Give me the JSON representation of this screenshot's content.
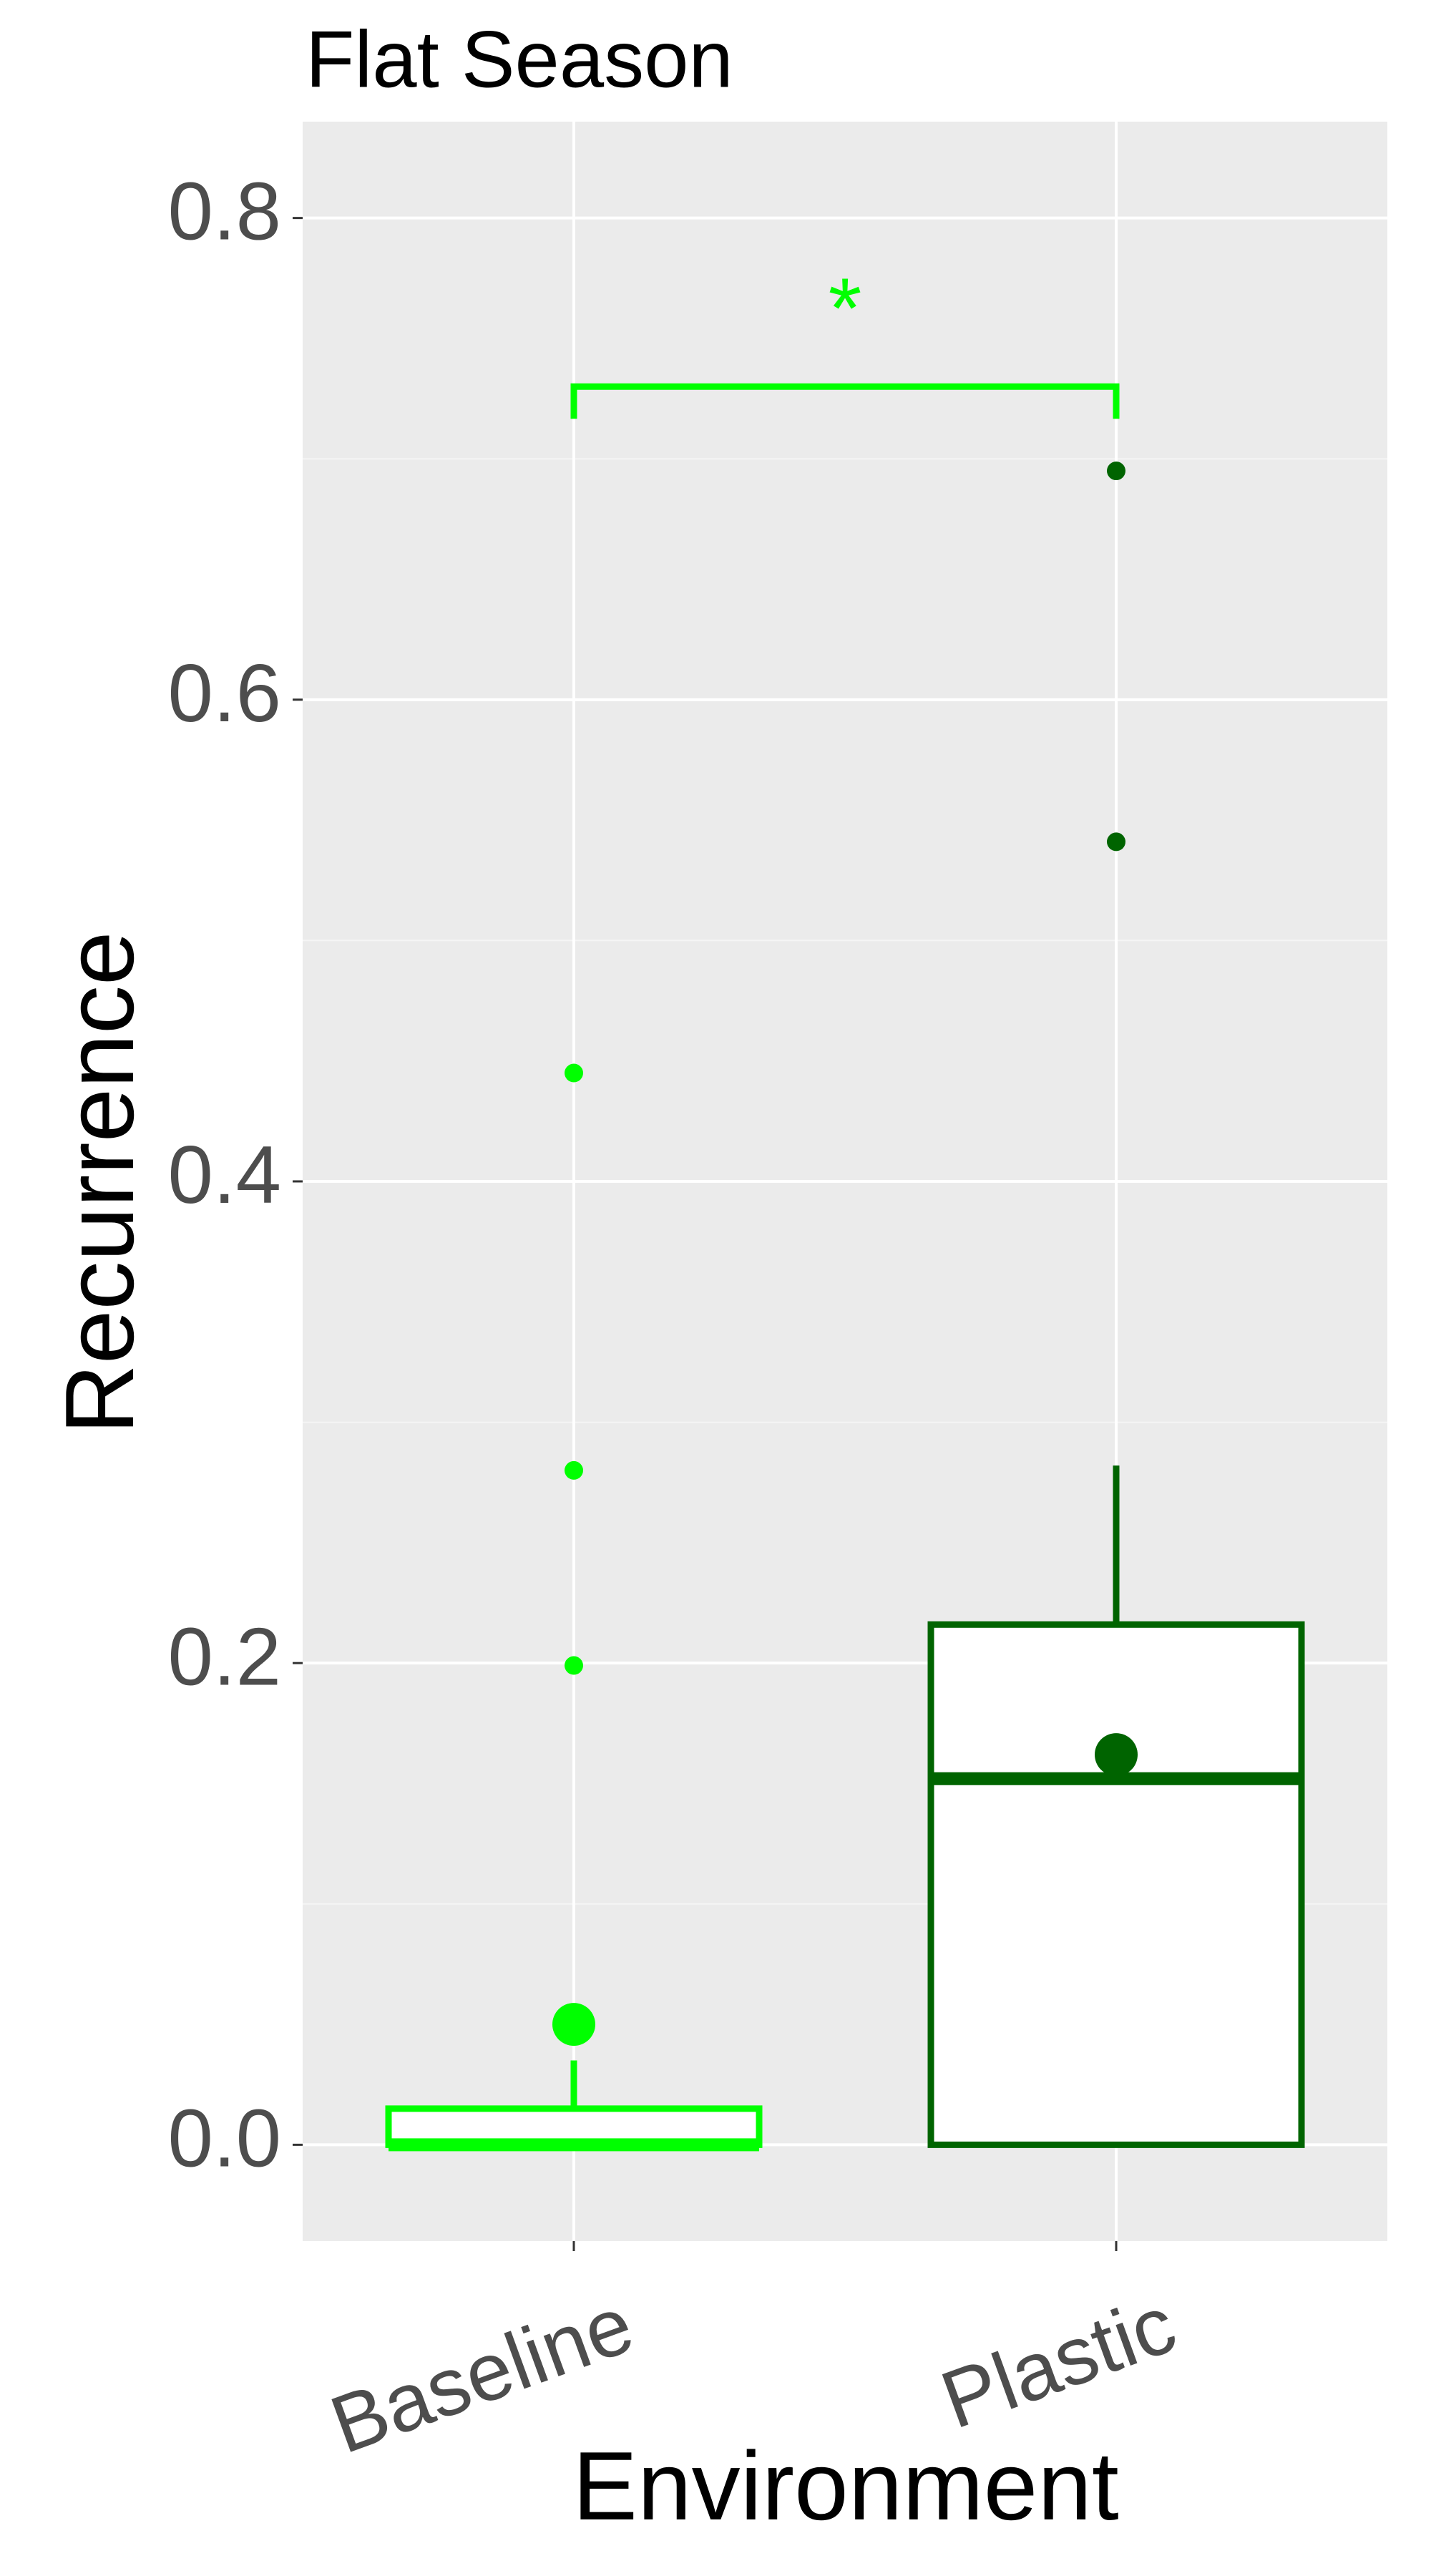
{
  "chart_data": {
    "type": "box",
    "title": "Flat Season",
    "x_label": "Environment",
    "y_label": "Recurrence",
    "categories": [
      "Baseline",
      "Plastic"
    ],
    "colors": [
      "#00ff00",
      "#006400"
    ],
    "boxes": [
      {
        "min": 0,
        "q1": 0,
        "median": 0,
        "q3": 0.015,
        "max": 0.035,
        "mean": 0.05,
        "outliers": [
          0.199,
          0.28,
          0.445
        ]
      },
      {
        "min": 0,
        "q1": 0,
        "median": 0.152,
        "q3": 0.216,
        "max": 0.282,
        "mean": 0.162,
        "outliers": [
          0.541,
          0.695
        ]
      }
    ],
    "annotation": {
      "text": "*",
      "y": 0.73,
      "color": "#00ff00"
    },
    "ylim": [
      -0.04,
      0.84
    ],
    "yticks": [
      {
        "value": 0,
        "label": "0.0"
      },
      0.2,
      0.4,
      0.6,
      0.8
    ],
    "grid": true
  }
}
